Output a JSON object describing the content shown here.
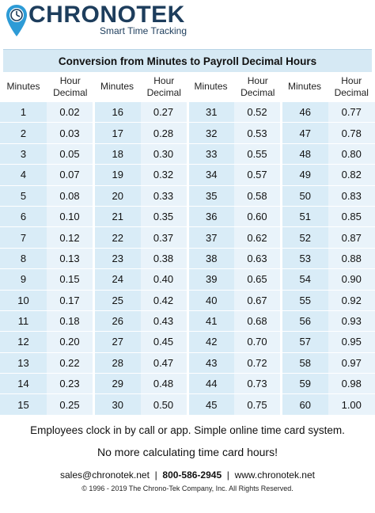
{
  "brand": {
    "name": "CHRONOTEK",
    "tagline": "Smart Time Tracking",
    "primary_color": "#1d3d5c",
    "accent_color": "#2d9bd6"
  },
  "table": {
    "title": "Conversion from Minutes to Payroll Decimal Hours",
    "header_minutes": "Minutes",
    "header_decimal_line1": "Hour",
    "header_decimal_line2": "Decimal",
    "rows": [
      [
        [
          "1",
          "0.02"
        ],
        [
          "16",
          "0.27"
        ],
        [
          "31",
          "0.52"
        ],
        [
          "46",
          "0.77"
        ]
      ],
      [
        [
          "2",
          "0.03"
        ],
        [
          "17",
          "0.28"
        ],
        [
          "32",
          "0.53"
        ],
        [
          "47",
          "0.78"
        ]
      ],
      [
        [
          "3",
          "0.05"
        ],
        [
          "18",
          "0.30"
        ],
        [
          "33",
          "0.55"
        ],
        [
          "48",
          "0.80"
        ]
      ],
      [
        [
          "4",
          "0.07"
        ],
        [
          "19",
          "0.32"
        ],
        [
          "34",
          "0.57"
        ],
        [
          "49",
          "0.82"
        ]
      ],
      [
        [
          "5",
          "0.08"
        ],
        [
          "20",
          "0.33"
        ],
        [
          "35",
          "0.58"
        ],
        [
          "50",
          "0.83"
        ]
      ],
      [
        [
          "6",
          "0.10"
        ],
        [
          "21",
          "0.35"
        ],
        [
          "36",
          "0.60"
        ],
        [
          "51",
          "0.85"
        ]
      ],
      [
        [
          "7",
          "0.12"
        ],
        [
          "22",
          "0.37"
        ],
        [
          "37",
          "0.62"
        ],
        [
          "52",
          "0.87"
        ]
      ],
      [
        [
          "8",
          "0.13"
        ],
        [
          "23",
          "0.38"
        ],
        [
          "38",
          "0.63"
        ],
        [
          "53",
          "0.88"
        ]
      ],
      [
        [
          "9",
          "0.15"
        ],
        [
          "24",
          "0.40"
        ],
        [
          "39",
          "0.65"
        ],
        [
          "54",
          "0.90"
        ]
      ],
      [
        [
          "10",
          "0.17"
        ],
        [
          "25",
          "0.42"
        ],
        [
          "40",
          "0.67"
        ],
        [
          "55",
          "0.92"
        ]
      ],
      [
        [
          "11",
          "0.18"
        ],
        [
          "26",
          "0.43"
        ],
        [
          "41",
          "0.68"
        ],
        [
          "56",
          "0.93"
        ]
      ],
      [
        [
          "12",
          "0.20"
        ],
        [
          "27",
          "0.45"
        ],
        [
          "42",
          "0.70"
        ],
        [
          "57",
          "0.95"
        ]
      ],
      [
        [
          "13",
          "0.22"
        ],
        [
          "28",
          "0.47"
        ],
        [
          "43",
          "0.72"
        ],
        [
          "58",
          "0.97"
        ]
      ],
      [
        [
          "14",
          "0.23"
        ],
        [
          "29",
          "0.48"
        ],
        [
          "44",
          "0.73"
        ],
        [
          "59",
          "0.98"
        ]
      ],
      [
        [
          "15",
          "0.25"
        ],
        [
          "30",
          "0.50"
        ],
        [
          "45",
          "0.75"
        ],
        [
          "60",
          "1.00"
        ]
      ]
    ]
  },
  "footer": {
    "line1": "Employees clock in by call or app. Simple online time card system.",
    "line2": "No more calculating time card hours!",
    "email": "sales@chronotek.net",
    "separator": "|",
    "phone": "800-586-2945",
    "website": "www.chronotek.net",
    "copyright": "© 1996 - 2019 The Chrono-Tek Company, Inc. All Rights Reserved."
  }
}
